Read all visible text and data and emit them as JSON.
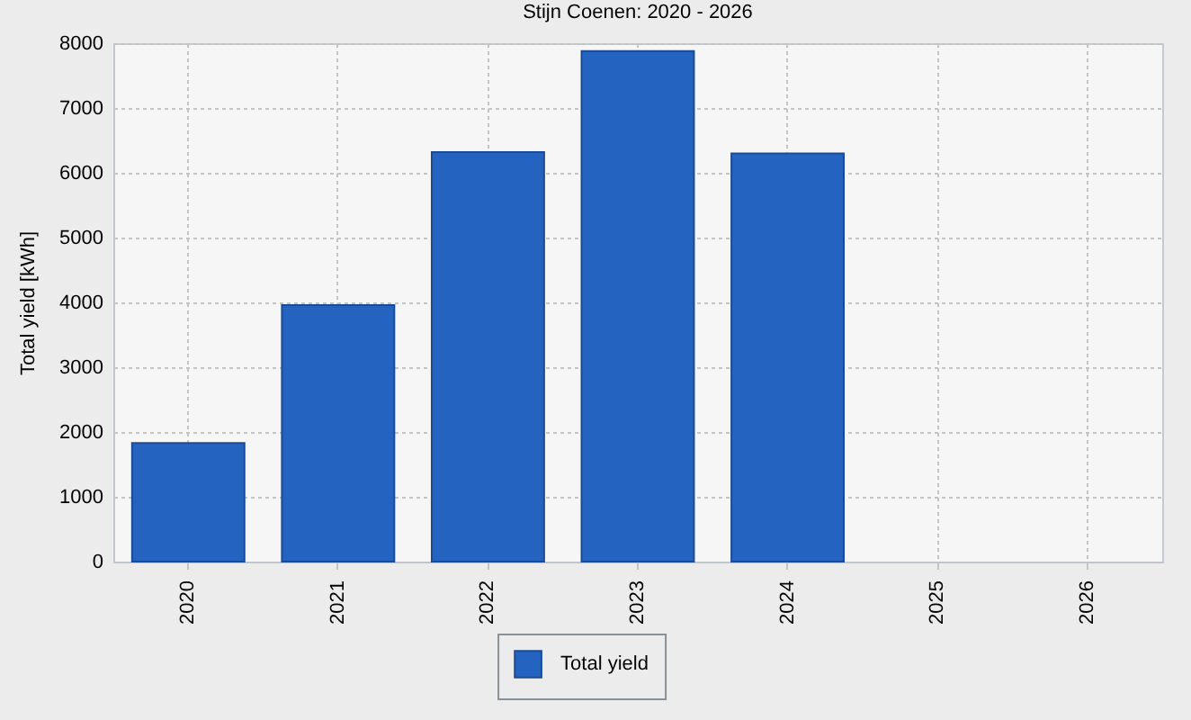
{
  "chart_data": {
    "type": "bar",
    "title": "Stijn Coenen: 2020 - 2026",
    "ylabel": "Total yield [kWh]",
    "categories": [
      "2020",
      "2021",
      "2022",
      "2023",
      "2024",
      "2025",
      "2026"
    ],
    "series": [
      {
        "name": "Total yield",
        "color": "#2563c0",
        "values": [
          1830,
          3960,
          6320,
          7880,
          6300,
          null,
          null
        ]
      }
    ],
    "ylim": [
      0,
      8000
    ],
    "yticks": [
      0,
      1000,
      2000,
      3000,
      4000,
      5000,
      6000,
      7000,
      8000
    ],
    "grid": true,
    "legend": "bottom"
  }
}
